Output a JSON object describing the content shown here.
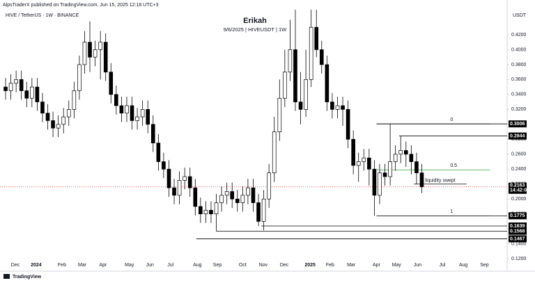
{
  "header": {
    "publisher": "AlpsTraderX published on TradingView.com, Jun 15, 2025 12:18 UTC+3",
    "symbol": "HIVE / TetherUS · 1W · BINANCE",
    "currency": "USDT"
  },
  "footer": {
    "brand": "TradingView"
  },
  "chart_data": {
    "type": "candlestick",
    "title": "Erikah",
    "subtitle": "9/6/2025 | HIVEUSDT | 1W",
    "x": [
      0,
      1,
      2,
      3,
      4,
      5,
      6,
      7,
      8,
      9,
      10,
      11,
      12,
      13,
      14,
      15,
      16,
      17,
      18,
      19,
      20,
      21,
      22,
      23,
      24,
      25,
      26,
      27,
      28,
      29,
      30,
      31,
      32,
      33,
      34,
      35,
      36,
      37,
      38,
      39,
      40,
      41,
      42,
      43,
      44,
      45,
      46,
      47,
      48,
      49,
      50,
      51,
      52,
      53,
      54,
      55,
      56,
      57,
      58,
      59,
      60,
      61,
      62,
      63,
      64,
      65,
      66,
      67,
      68,
      69,
      70,
      71,
      72,
      73,
      74,
      75,
      76,
      77,
      78,
      79
    ],
    "open": [
      0.35,
      0.345,
      0.355,
      0.36,
      0.345,
      0.335,
      0.35,
      0.33,
      0.315,
      0.305,
      0.295,
      0.3,
      0.31,
      0.32,
      0.345,
      0.38,
      0.41,
      0.39,
      0.4,
      0.41,
      0.37,
      0.34,
      0.325,
      0.315,
      0.325,
      0.305,
      0.31,
      0.32,
      0.3,
      0.275,
      0.25,
      0.24,
      0.215,
      0.205,
      0.225,
      0.23,
      0.215,
      0.19,
      0.18,
      0.185,
      0.18,
      0.195,
      0.205,
      0.21,
      0.2,
      0.195,
      0.205,
      0.215,
      0.195,
      0.17,
      0.2,
      0.235,
      0.29,
      0.335,
      0.37,
      0.4,
      0.33,
      0.32,
      0.36,
      0.43,
      0.4,
      0.38,
      0.33,
      0.32,
      0.325,
      0.32,
      0.28,
      0.245,
      0.25,
      0.255,
      0.24,
      0.205,
      0.235,
      0.23,
      0.25,
      0.26,
      0.265,
      0.26,
      0.25,
      0.235
    ],
    "high": [
      0.362,
      0.367,
      0.372,
      0.372,
      0.357,
      0.362,
      0.362,
      0.342,
      0.327,
      0.317,
      0.312,
      0.322,
      0.332,
      0.357,
      0.392,
      0.425,
      0.438,
      0.412,
      0.425,
      0.422,
      0.382,
      0.352,
      0.337,
      0.337,
      0.337,
      0.322,
      0.332,
      0.332,
      0.312,
      0.287,
      0.262,
      0.252,
      0.227,
      0.237,
      0.242,
      0.242,
      0.227,
      0.202,
      0.197,
      0.197,
      0.207,
      0.217,
      0.222,
      0.222,
      0.212,
      0.217,
      0.227,
      0.227,
      0.207,
      0.212,
      0.247,
      0.31,
      0.36,
      0.4,
      0.44,
      0.46,
      0.37,
      0.4,
      0.47,
      0.46,
      0.412,
      0.392,
      0.342,
      0.337,
      0.337,
      0.332,
      0.292,
      0.262,
      0.267,
      0.267,
      0.252,
      0.247,
      0.247,
      0.3006,
      0.272,
      0.2844,
      0.277,
      0.272,
      0.262,
      0.247
    ],
    "low": [
      0.333,
      0.333,
      0.343,
      0.333,
      0.323,
      0.323,
      0.318,
      0.303,
      0.293,
      0.283,
      0.283,
      0.288,
      0.298,
      0.308,
      0.333,
      0.368,
      0.37,
      0.378,
      0.36,
      0.358,
      0.328,
      0.313,
      0.303,
      0.303,
      0.293,
      0.293,
      0.298,
      0.288,
      0.263,
      0.238,
      0.228,
      0.203,
      0.193,
      0.193,
      0.213,
      0.203,
      0.178,
      0.168,
      0.168,
      0.168,
      0.1568,
      0.183,
      0.193,
      0.188,
      0.183,
      0.183,
      0.193,
      0.183,
      0.1639,
      0.158,
      0.188,
      0.223,
      0.278,
      0.323,
      0.358,
      0.318,
      0.3,
      0.31,
      0.35,
      0.39,
      0.368,
      0.318,
      0.308,
      0.308,
      0.298,
      0.268,
      0.233,
      0.223,
      0.238,
      0.218,
      0.1775,
      0.193,
      0.218,
      0.218,
      0.238,
      0.248,
      0.243,
      0.233,
      0.22,
      0.208
    ],
    "close": [
      0.345,
      0.355,
      0.36,
      0.345,
      0.335,
      0.35,
      0.33,
      0.315,
      0.305,
      0.295,
      0.3,
      0.31,
      0.32,
      0.345,
      0.38,
      0.41,
      0.39,
      0.4,
      0.41,
      0.37,
      0.34,
      0.325,
      0.315,
      0.325,
      0.305,
      0.31,
      0.32,
      0.3,
      0.275,
      0.25,
      0.24,
      0.215,
      0.205,
      0.225,
      0.23,
      0.215,
      0.19,
      0.18,
      0.185,
      0.18,
      0.195,
      0.205,
      0.21,
      0.2,
      0.195,
      0.205,
      0.215,
      0.195,
      0.17,
      0.2,
      0.235,
      0.29,
      0.335,
      0.37,
      0.4,
      0.33,
      0.32,
      0.36,
      0.43,
      0.4,
      0.38,
      0.33,
      0.32,
      0.325,
      0.32,
      0.28,
      0.245,
      0.25,
      0.255,
      0.24,
      0.205,
      0.235,
      0.23,
      0.25,
      0.26,
      0.265,
      0.26,
      0.25,
      0.235,
      0.2163
    ],
    "up_color": "#ffffff",
    "down_color": "#000000",
    "xlim": [
      -1.06,
      95.2
    ],
    "xticks": [
      {
        "value": 1.85,
        "label": "Dec"
      },
      {
        "value": 5.8,
        "label": "2024"
      },
      {
        "value": 10.7,
        "label": "Feb"
      },
      {
        "value": 14.55,
        "label": "Mar"
      },
      {
        "value": 18.5,
        "label": "Apr"
      },
      {
        "value": 23.5,
        "label": "May"
      },
      {
        "value": 27.4,
        "label": "Jun"
      },
      {
        "value": 31.3,
        "label": "Jul"
      },
      {
        "value": 36.4,
        "label": "Aug"
      },
      {
        "value": 40.2,
        "label": "Sep"
      },
      {
        "value": 45,
        "label": "Oct"
      },
      {
        "value": 48.9,
        "label": "Nov"
      },
      {
        "value": 52.9,
        "label": "Dec"
      },
      {
        "value": 57.8,
        "label": "2025"
      },
      {
        "value": 61.6,
        "label": "Feb"
      },
      {
        "value": 65.6,
        "label": "Mar"
      },
      {
        "value": 70.4,
        "label": "Apr"
      },
      {
        "value": 74.2,
        "label": "May"
      },
      {
        "value": 78.2,
        "label": "Jun"
      },
      {
        "value": 82.9,
        "label": "Jul"
      },
      {
        "value": 86.9,
        "label": "Aug"
      },
      {
        "value": 90.9,
        "label": "Sep"
      }
    ],
    "ylim": [
      0.108,
      0.4535
    ],
    "yticks": [
      {
        "value": 0.12,
        "label": "0.1200"
      },
      {
        "value": 0.14,
        "label": "0.1400"
      },
      {
        "value": 0.16,
        "label": "0.1600"
      },
      {
        "value": 0.18,
        "label": "0.1800"
      },
      {
        "value": 0.2,
        "label": "0.2000"
      },
      {
        "value": 0.22,
        "label": "0.2200"
      },
      {
        "value": 0.24,
        "label": "0.2400"
      },
      {
        "value": 0.26,
        "label": "0.2600"
      },
      {
        "value": 0.28,
        "label": "0.2800"
      },
      {
        "value": 0.3,
        "label": "0.3000"
      },
      {
        "value": 0.32,
        "label": "0.3200"
      },
      {
        "value": 0.34,
        "label": "0.3400"
      },
      {
        "value": 0.36,
        "label": "0.3600"
      },
      {
        "value": 0.38,
        "label": "0.3800"
      },
      {
        "value": 0.4,
        "label": "0.4000"
      },
      {
        "value": 0.42,
        "label": "0.4200"
      }
    ],
    "grid": false,
    "levels": [
      {
        "value": 0.3006,
        "from": 70.4
      },
      {
        "value": 0.2844,
        "from": 74.7
      },
      {
        "value": 0.1775,
        "from": 70.4
      },
      {
        "value": 0.1639,
        "from": 48.5
      },
      {
        "value": 0.1568,
        "from": 40
      },
      {
        "value": 0.1467,
        "from": 36.2
      }
    ],
    "fib": [
      {
        "ratio": 0,
        "price": 0.3006,
        "color": "#787b86"
      },
      {
        "ratio": 0.5,
        "price": 0.239,
        "color": "#4caf50"
      },
      {
        "ratio": 1,
        "price": 0.1775,
        "color": "#787b86"
      }
    ],
    "liquidity": {
      "label": "liquidity swept",
      "value": 0.22,
      "from": 77.5,
      "to": 87.5
    },
    "price_line": {
      "value": 0.2163,
      "countdown": "14:42:00",
      "color": "#f23645"
    }
  }
}
